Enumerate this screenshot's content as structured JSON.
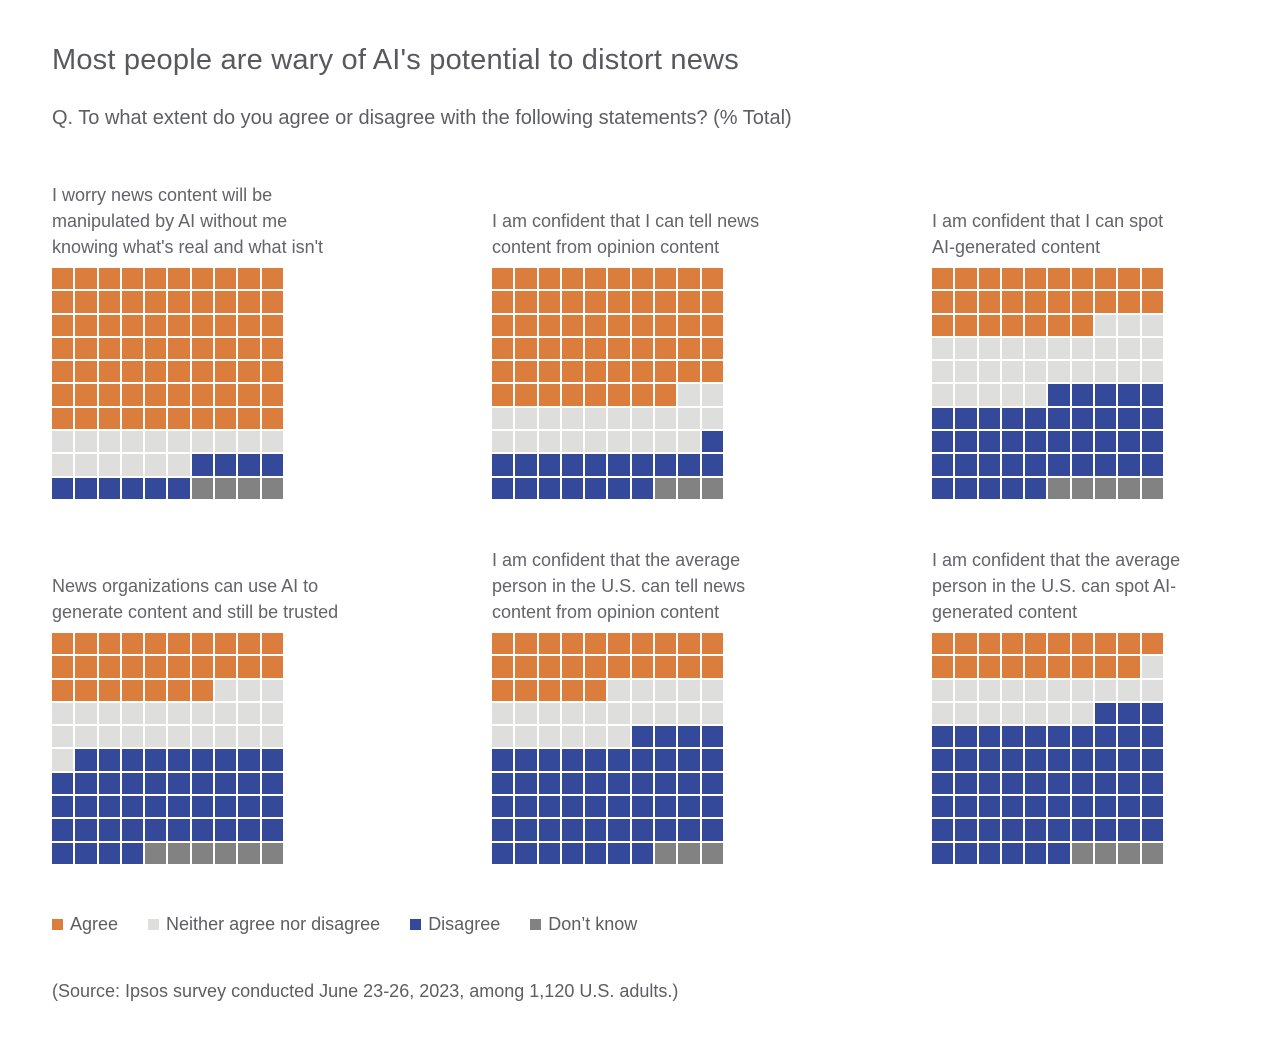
{
  "header": {
    "title": "Most people are wary of AI's potential to distort news",
    "subtitle": "Q. To what extent do you agree or disagree with the following statements? (% Total)"
  },
  "colors": {
    "agree": "#DB7E3D",
    "neither": "#DEDEDD",
    "disagree": "#35499B",
    "dont_know": "#828282",
    "background": "#FFFFFF",
    "text": "#5D5E61"
  },
  "chart_data": {
    "type": "waffle",
    "grid": {
      "rows": 10,
      "cols": 10,
      "units_per_chart": 100,
      "fill_order": "left-to-right, top-to-bottom"
    },
    "categories": [
      "Agree",
      "Neither agree nor disagree",
      "Disagree",
      "Don’t know"
    ],
    "category_keys": [
      "agree",
      "neither",
      "disagree",
      "dont_know"
    ],
    "legend_position": "bottom",
    "charts": [
      {
        "title": "I worry news content will be\nmanipulated by AI without me\nknowing what's real and what isn't",
        "values": {
          "agree": 70,
          "neither": 16,
          "disagree": 10,
          "dont_know": 4
        }
      },
      {
        "title": "I am confident that I can tell news\ncontent from opinion content",
        "values": {
          "agree": 58,
          "neither": 21,
          "disagree": 18,
          "dont_know": 3
        }
      },
      {
        "title": "I am confident that I can spot\nAI-generated content",
        "values": {
          "agree": 27,
          "neither": 28,
          "disagree": 40,
          "dont_know": 5
        }
      },
      {
        "title": "News organizations can use AI to\ngenerate content and still be trusted",
        "values": {
          "agree": 27,
          "neither": 24,
          "disagree": 43,
          "dont_know": 6
        }
      },
      {
        "title": "I am confident that the average\nperson in the U.S. can tell news\ncontent from opinion content",
        "values": {
          "agree": 25,
          "neither": 21,
          "disagree": 51,
          "dont_know": 3
        }
      },
      {
        "title": "I am confident that the average\nperson in the U.S. can spot AI-\ngenerated content",
        "values": {
          "agree": 19,
          "neither": 18,
          "disagree": 59,
          "dont_know": 4
        }
      }
    ]
  },
  "source": "(Source: Ipsos survey conducted June 23-26, 2023, among 1,120 U.S. adults.)"
}
